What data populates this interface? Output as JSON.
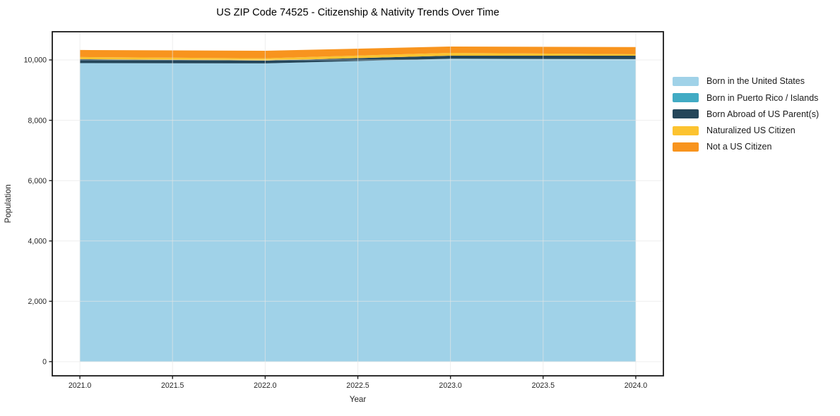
{
  "figure": {
    "title": "US ZIP Code 74525 - Citizenship & Nativity Trends Over Time"
  },
  "axes": {
    "xlabel": "Year",
    "ylabel": "Population"
  },
  "chart_data": {
    "type": "area",
    "stacked": true,
    "title": "US ZIP Code 74525 - Citizenship & Nativity Trends Over Time",
    "xlabel": "Year",
    "ylabel": "Population",
    "x": [
      2021,
      2022,
      2023,
      2024
    ],
    "series": [
      {
        "name": "Born in the United States",
        "color": "#a0d2e8",
        "values": [
          9895,
          9885,
          10040,
          10025
        ]
      },
      {
        "name": "Born in Puerto Rico / Islands",
        "color": "#41abc4",
        "values": [
          0,
          0,
          0,
          0
        ]
      },
      {
        "name": "Born Abroad of US Parent(s)",
        "color": "#24465a",
        "values": [
          130,
          95,
          100,
          115
        ]
      },
      {
        "name": "Naturalized US Citizen",
        "color": "#fcc330",
        "values": [
          70,
          75,
          95,
          50
        ]
      },
      {
        "name": "Not a US Citizen",
        "color": "#f8941e",
        "values": [
          235,
          250,
          210,
          235
        ]
      }
    ],
    "totals": [
      10330,
      10305,
      10445,
      10425
    ],
    "x_ticks": [
      2021.0,
      2021.5,
      2022.0,
      2022.5,
      2023.0,
      2023.5,
      2024.0
    ],
    "x_tick_labels": [
      "2021.0",
      "2021.5",
      "2022.0",
      "2022.5",
      "2023.0",
      "2023.5",
      "2024.0"
    ],
    "y_ticks": [
      0,
      2000,
      4000,
      6000,
      8000,
      10000
    ],
    "y_tick_labels": [
      "0",
      "2,000",
      "4,000",
      "6,000",
      "8,000",
      "10,000"
    ],
    "xlim": [
      2020.851,
      2024.149
    ],
    "ylim": [
      -470,
      10935
    ],
    "grid": true,
    "grid_color": "#e6e6e6",
    "legend_position": "right",
    "spine_color": "#1a1a1a",
    "tick_label_color": "#262626",
    "background": "#ffffff"
  }
}
